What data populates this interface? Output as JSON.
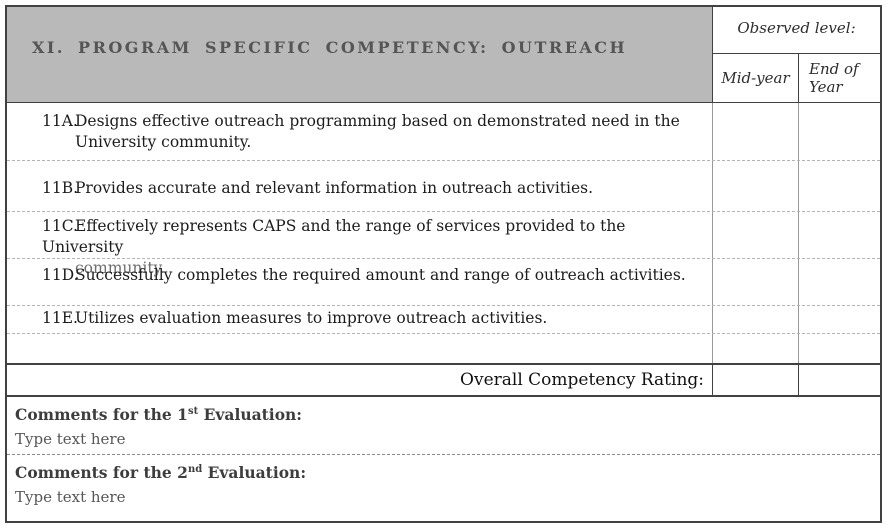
{
  "header": {
    "title": "XI. PROGRAM SPECIFIC COMPETENCY: OUTREACH",
    "observed_level_label": "Observed level:",
    "col_mid": "Mid-year",
    "col_end": "End of Year"
  },
  "rows": [
    {
      "label": "11A.",
      "line1": "Designs effective outreach programming based on demonstrated need in the",
      "line2": "University community."
    },
    {
      "label": "11B.",
      "line1": "Provides accurate and relevant information in outreach activities.",
      "line2": ""
    },
    {
      "label": "11C.",
      "line1": "Effectively represents CAPS and the range of services provided to the University",
      "line2": "community."
    },
    {
      "label": "11D.",
      "line1": "Successfully completes the required amount and range of outreach activities.",
      "line2": ""
    },
    {
      "label": "11E.",
      "line1": "Utilizes evaluation measures to improve outreach activities.",
      "line2": ""
    }
  ],
  "rating": {
    "label": "Overall Competency Rating:"
  },
  "comments": [
    {
      "prefix": "Comments for the 1",
      "sup": "st",
      "suffix": " Evaluation:",
      "placeholder": "Type text here"
    },
    {
      "prefix": "Comments for the 2",
      "sup": "nd",
      "suffix": " Evaluation:",
      "placeholder": "Type text here"
    }
  ],
  "colors": {
    "header_bg": "#b9b9b9",
    "header_text": "#555555",
    "border_dark": "#414141",
    "border_gray": "#999999",
    "dashed_line": "#b4b4b4",
    "body_text": "#1c1c1c",
    "muted_line_text": "#6e6e6e",
    "placeholder_text": "#565656"
  }
}
